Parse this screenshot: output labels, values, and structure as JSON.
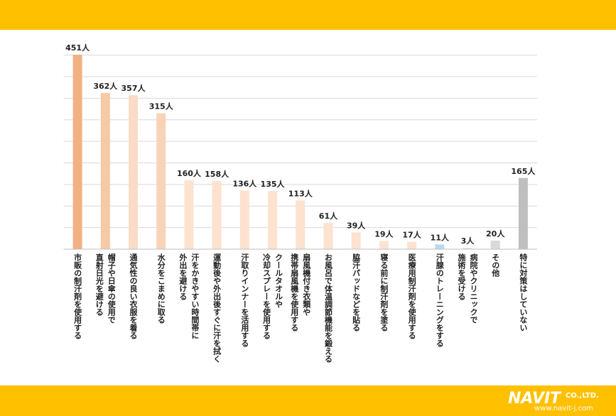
{
  "chart_data": {
    "type": "bar",
    "categories": [
      "市販の制汗剤を使用する",
      "帽子や日傘の使用で\n直射日光を避ける",
      "通気性の良い衣服を着る",
      "水分をこまめに取る",
      "汗をかきやすい時間帯に\n外出を避ける",
      "運動後や外出後すぐに汗を拭く",
      "汗取りインナーを活用する",
      "クールタオルや\n冷却スプレーを使用する",
      "扇風機付き衣類や\n携帯扇風機を使用する",
      "お風呂で体温調節機能を鍛える",
      "脇汗パッドなどを貼る",
      "寝る前に制汗剤を塗る",
      "医療用制汗剤を使用する",
      "汗腺のトレーニングをする",
      "病院やクリニックで\n施術を受ける",
      "その他",
      "特に対策はしていない"
    ],
    "values": [
      451,
      362,
      357,
      315,
      160,
      158,
      136,
      135,
      113,
      61,
      39,
      19,
      17,
      11,
      3,
      20,
      165
    ],
    "value_labels": [
      "451人",
      "362人",
      "357人",
      "315人",
      "160人",
      "158人",
      "136人",
      "135人",
      "113人",
      "61人",
      "39人",
      "19人",
      "17人",
      "11人",
      "3人",
      "20人",
      "165人"
    ],
    "colors": [
      "#f2b183",
      "#f7c9a6",
      "#fadbc5",
      "#f9d3b8",
      "#fde2cf",
      "#fde2cf",
      "#fde2cf",
      "#fde2cf",
      "#fde2cf",
      "#fde2cf",
      "#fde2cf",
      "#fde2cf",
      "#fde2cf",
      "#bdd7ee",
      "#dae3f3",
      "#d9d9d9",
      "#bfbfbf"
    ],
    "ylim": [
      0,
      450
    ],
    "yticks": [
      0,
      50,
      100,
      150,
      200,
      250,
      300,
      350,
      400,
      450
    ],
    "grid": true
  },
  "footer": {
    "logo": "NAVIT",
    "company": "CO.,LTD.",
    "url": "www.navit-j.com"
  }
}
